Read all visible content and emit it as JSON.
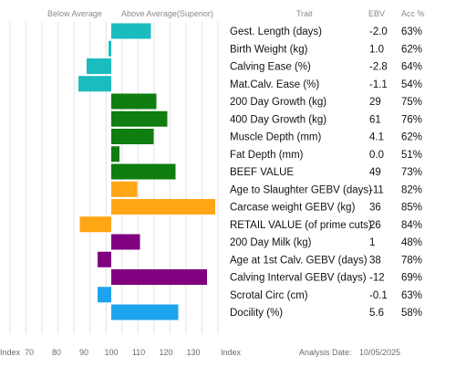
{
  "chart_data": {
    "type": "bar",
    "orientation": "horizontal",
    "header": {
      "below_average": "Below Average",
      "above_average": "Above Average(Superior)",
      "trait": "Trait",
      "ebv": "EBV",
      "acc": "Acc %"
    },
    "x_axis": {
      "start_label": "Index",
      "end_label": "Index",
      "ticks": [
        "70",
        "80",
        "90",
        "100",
        "110",
        "120",
        "130"
      ],
      "range": [
        63,
        139
      ],
      "baseline": 100
    },
    "footer": {
      "analysis_date_label": "Analysis Date:",
      "analysis_date": "10/05/2025"
    },
    "rows": [
      {
        "trait": "Gest. Length (days)",
        "ebv": "-2.0",
        "acc": "63%",
        "index": 114.5,
        "color": "#1bbcbf"
      },
      {
        "trait": "Birth Weight (kg)",
        "ebv": "1.0",
        "acc": "62%",
        "index": 99,
        "color": "#1bbcbf"
      },
      {
        "trait": "Calving Ease (%)",
        "ebv": "-2.8",
        "acc": "64%",
        "index": 91,
        "color": "#1bbcbf"
      },
      {
        "trait": "Mat.Calv. Ease (%)",
        "ebv": "-1.1",
        "acc": "54%",
        "index": 88,
        "color": "#1bbcbf"
      },
      {
        "trait": "200 Day Growth (kg)",
        "ebv": "29",
        "acc": "75%",
        "index": 116.5,
        "color": "#0f7d0f"
      },
      {
        "trait": "400 Day Growth (kg)",
        "ebv": "61",
        "acc": "76%",
        "index": 120.5,
        "color": "#0f7d0f"
      },
      {
        "trait": "Muscle Depth (mm)",
        "ebv": "4.1",
        "acc": "62%",
        "index": 115.5,
        "color": "#0f7d0f"
      },
      {
        "trait": "Fat Depth (mm)",
        "ebv": "0.0",
        "acc": "51%",
        "index": 103,
        "color": "#0f7d0f"
      },
      {
        "trait": "BEEF VALUE",
        "ebv": "49",
        "acc": "73%",
        "index": 123.5,
        "color": "#0f7d0f"
      },
      {
        "trait": "Age to Slaughter GEBV (days)",
        "ebv": "-11",
        "acc": "82%",
        "index": 109.5,
        "color": "#ffa614"
      },
      {
        "trait": "Carcase weight GEBV (kg)",
        "ebv": "36",
        "acc": "85%",
        "index": 138,
        "color": "#ffa614"
      },
      {
        "trait": "RETAIL VALUE (of prime cuts)",
        "ebv": "26",
        "acc": "84%",
        "index": 88.5,
        "color": "#ffa614"
      },
      {
        "trait": "200 Day Milk (kg)",
        "ebv": "1",
        "acc": "48%",
        "index": 110.5,
        "color": "#800080"
      },
      {
        "trait": "Age at 1st Calv. GEBV (days)",
        "ebv": "38",
        "acc": "78%",
        "index": 95,
        "color": "#800080"
      },
      {
        "trait": "Calving Interval GEBV (days)",
        "ebv": "-12",
        "acc": "69%",
        "index": 135,
        "color": "#800080"
      },
      {
        "trait": "Scrotal Circ (cm)",
        "ebv": "-0.1",
        "acc": "63%",
        "index": 95,
        "color": "#1ea3ef"
      },
      {
        "trait": "Docility (%)",
        "ebv": "5.6",
        "acc": "58%",
        "index": 124.5,
        "color": "#1ea3ef"
      }
    ]
  }
}
